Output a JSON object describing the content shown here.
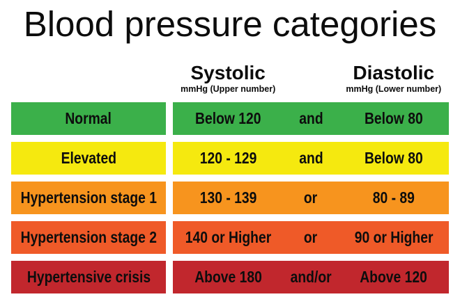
{
  "title": "Blood pressure categories",
  "text_color": "#0d0d0d",
  "columns": {
    "systolic": {
      "label": "Systolic",
      "sub": "mmHg (Upper number)"
    },
    "diastolic": {
      "label": "Diastolic",
      "sub": "mmHg (Lower number)"
    }
  },
  "rows": [
    {
      "category": "Normal",
      "systolic": "Below 120",
      "connector": "and",
      "diastolic": "Below 80",
      "color": "#3BB04A"
    },
    {
      "category": "Elevated",
      "systolic": "120 - 129",
      "connector": "and",
      "diastolic": "Below 80",
      "color": "#F5E90F"
    },
    {
      "category": "Hypertension stage 1",
      "systolic": "130 - 139",
      "connector": "or",
      "diastolic": "80 - 89",
      "color": "#F7941E"
    },
    {
      "category": "Hypertension stage 2",
      "systolic": "140 or Higher",
      "connector": "or",
      "diastolic": "90 or Higher",
      "color": "#EF5A28"
    },
    {
      "category": "Hypertensive crisis",
      "systolic": "Above 180",
      "connector": "and/or",
      "diastolic": "Above 120",
      "color": "#C1272D"
    }
  ],
  "chart_data": {
    "type": "table",
    "title": "Blood pressure categories",
    "columns": [
      "Category",
      "Systolic mmHg (Upper number)",
      "Connector",
      "Diastolic mmHg (Lower number)"
    ],
    "rows": [
      [
        "Normal",
        "Below 120",
        "and",
        "Below 80"
      ],
      [
        "Elevated",
        "120 - 129",
        "and",
        "Below 80"
      ],
      [
        "Hypertension stage 1",
        "130 - 139",
        "or",
        "80 - 89"
      ],
      [
        "Hypertension stage 2",
        "140 or Higher",
        "or",
        "90 or Higher"
      ],
      [
        "Hypertensive crisis",
        "Above 180",
        "and/or",
        "Above 120"
      ]
    ],
    "row_colors": [
      "#3BB04A",
      "#F5E90F",
      "#F7941E",
      "#EF5A28",
      "#C1272D"
    ]
  }
}
